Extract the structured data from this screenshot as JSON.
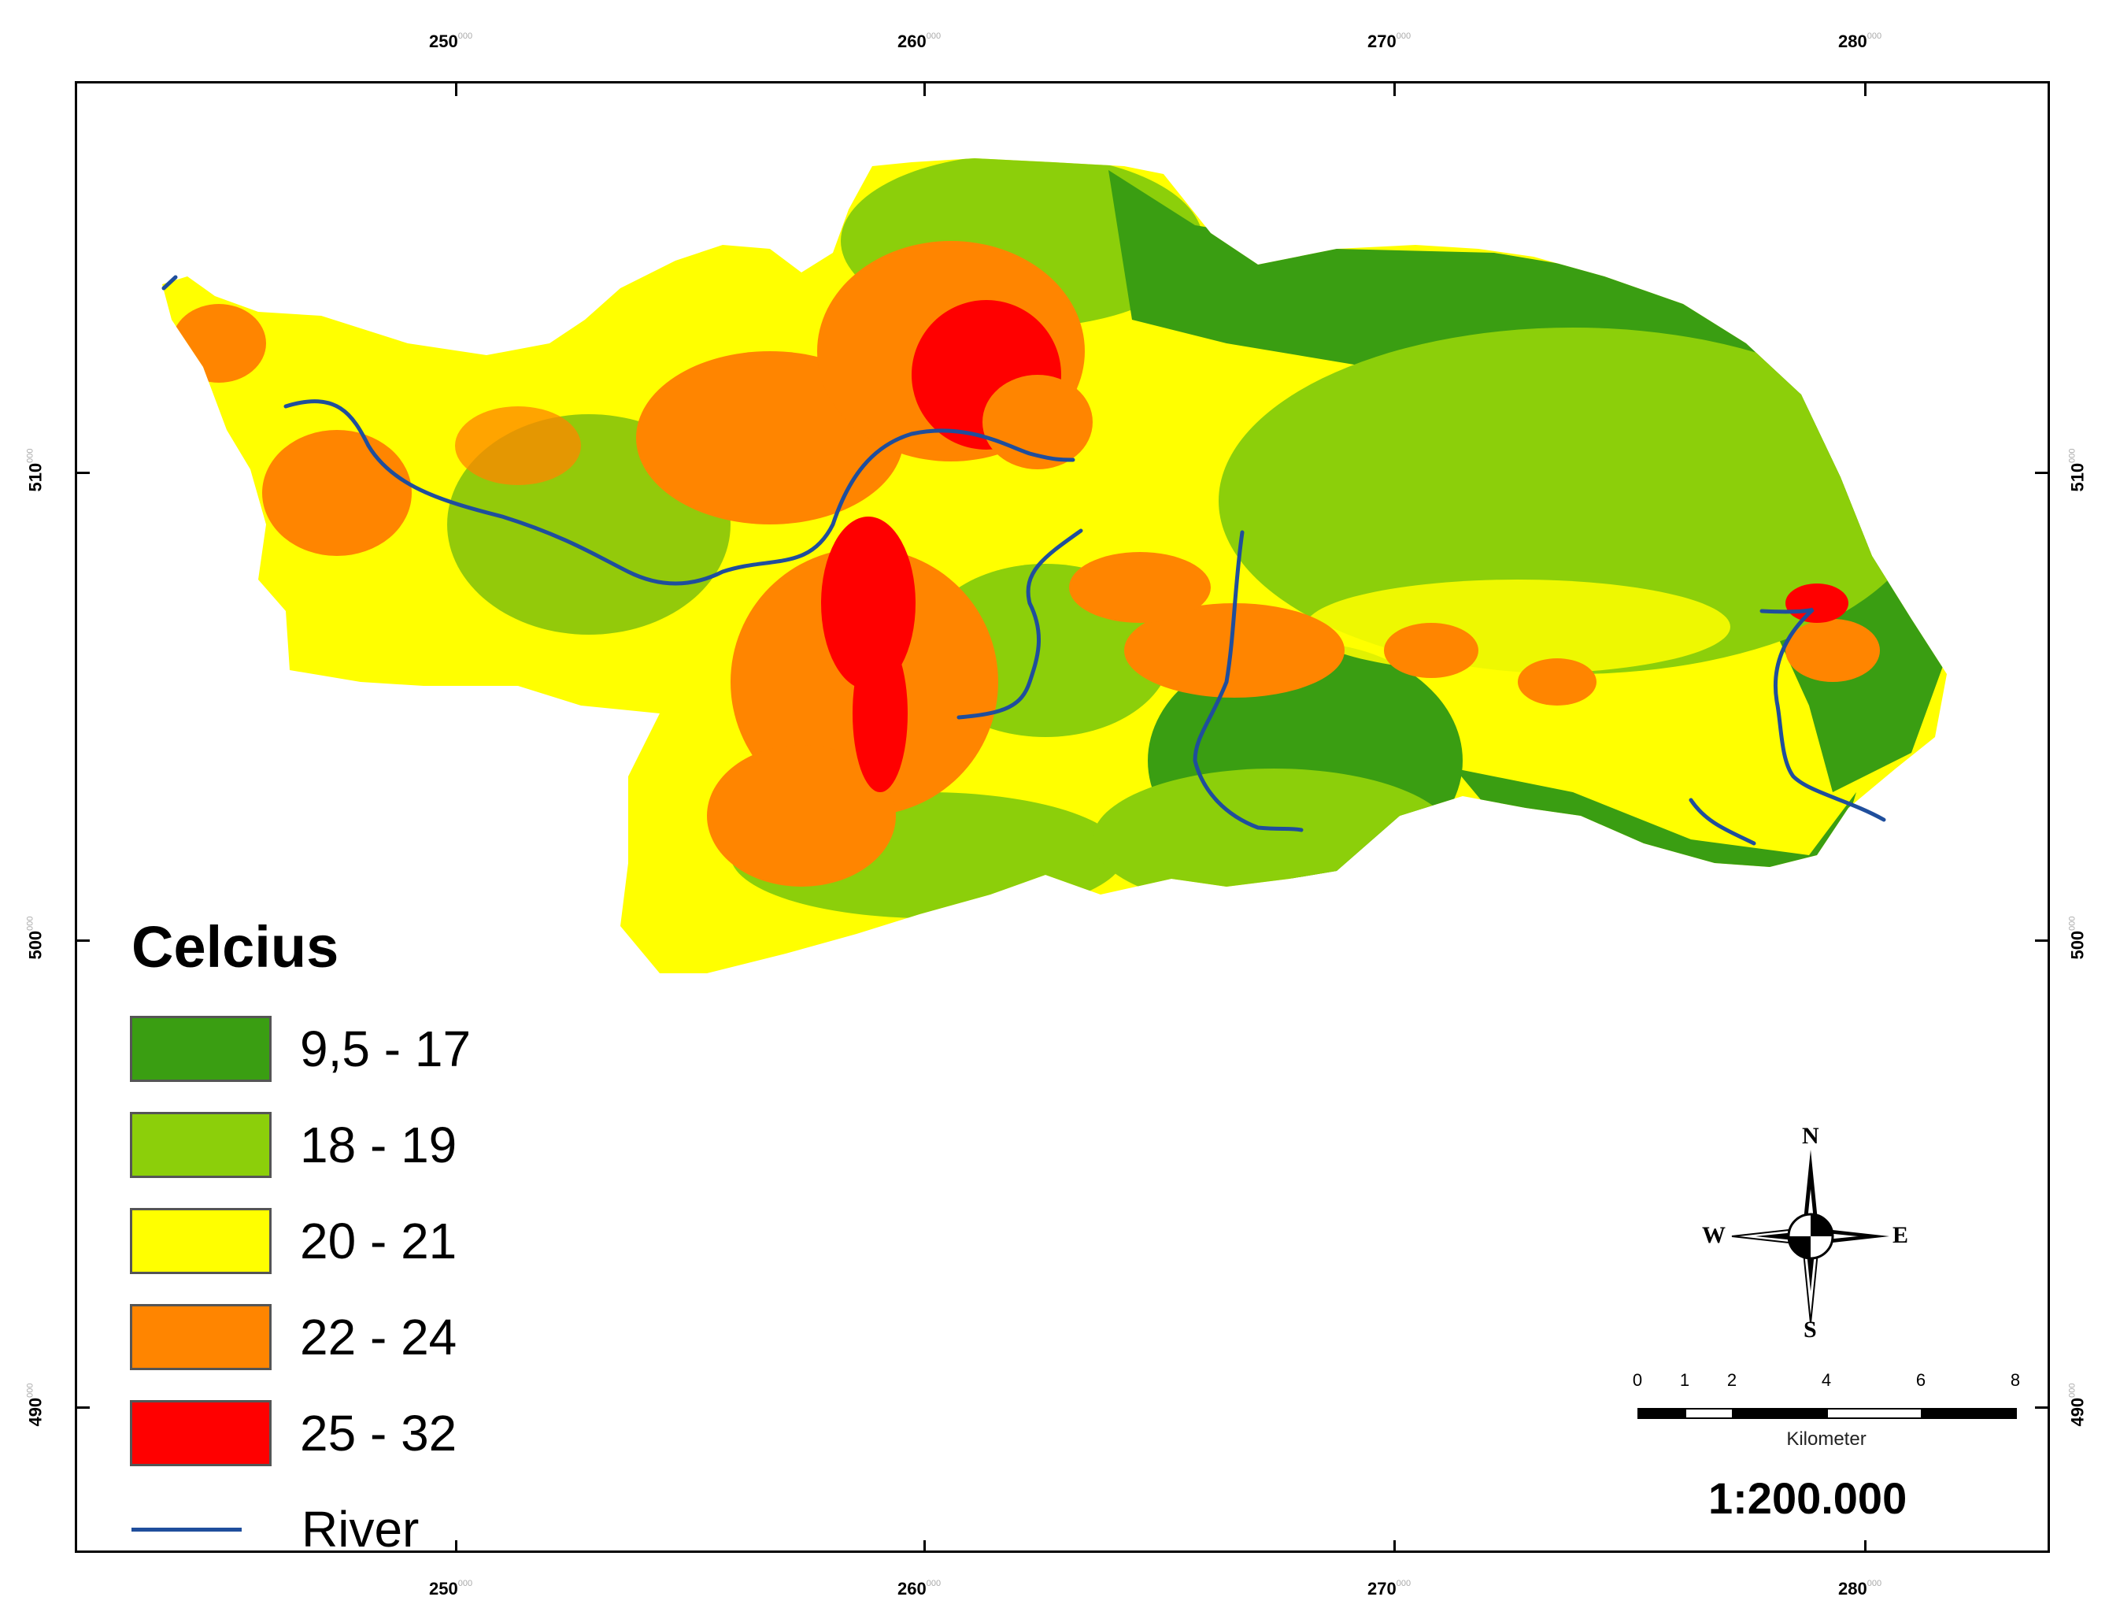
{
  "axes": {
    "x_ticks": [
      {
        "value": "250",
        "sup": "000"
      },
      {
        "value": "260",
        "sup": "000"
      },
      {
        "value": "270",
        "sup": "000"
      },
      {
        "value": "280",
        "sup": "000"
      }
    ],
    "y_ticks": [
      {
        "value": "510",
        "sup": "000"
      },
      {
        "value": "500",
        "sup": "000"
      },
      {
        "value": "490",
        "sup": "000"
      }
    ]
  },
  "legend": {
    "title": "Celcius",
    "classes": [
      {
        "label": "9,5 - 17",
        "color": "#3a9e12"
      },
      {
        "label": "18 - 19",
        "color": "#8ccf0a"
      },
      {
        "label": "20 - 21",
        "color": "#ffff00"
      },
      {
        "label": "22 - 24",
        "color": "#ff8500"
      },
      {
        "label": "25 - 32",
        "color": "#ff0000"
      }
    ],
    "river_label": "River",
    "river_color": "#1f4e9c"
  },
  "compass": {
    "n": "N",
    "s": "S",
    "e": "E",
    "w": "W"
  },
  "scalebar": {
    "ticks": [
      "0",
      "1",
      "2",
      "4",
      "6",
      "8"
    ],
    "unit": "Kilometer"
  },
  "scale_ratio": "1:200.000"
}
